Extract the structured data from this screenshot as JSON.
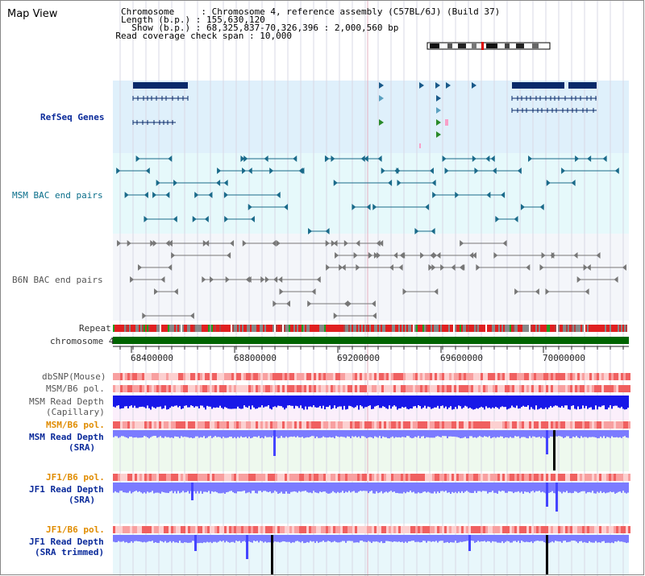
{
  "view": {
    "title": "Map View"
  },
  "header": {
    "lines": [
      "Chromosome     : Chromosome 4, reference assembly (C57BL/6J) (Build 37)",
      "Length (b.p.) : 155,630,120",
      "  Show (b.p.) : 68,325,837-70,326,396 : 2,000,560 bp",
      "Read coverage check span : 10,000"
    ]
  },
  "tracks": {
    "refseq": "RefSeq Genes",
    "msm_bac": "MSM BAC end pairs",
    "b6n_bac": "B6N BAC end pairs",
    "repeat": "Repeat",
    "chromosome": "chromosome 4",
    "dbsnp": "dbSNP(Mouse)",
    "msm_b6_pol_1": "MSM/B6 pol.",
    "msm_depth_cap_1": "MSM Read Depth",
    "msm_depth_cap_2": "(Capillary)",
    "msm_b6_pol_2": "MSM/B6 pol.",
    "msm_depth_sra_1": "MSM Read Depth",
    "msm_depth_sra_2": "(SRA)",
    "jf1_b6_pol_1": "JF1/B6 pol.",
    "jf1_depth_sra_1": "JF1 Read Depth",
    "jf1_depth_sra_2": "(SRA)",
    "jf1_b6_pol_2": "JF1/B6 pol.",
    "jf1_depth_trim_1": "JF1 Read Depth",
    "jf1_depth_trim_2": "(SRA trimmed)"
  },
  "axis": {
    "ticks": [
      "68400000",
      "68800000",
      "69200000",
      "69600000",
      "70000000"
    ]
  },
  "colors": {
    "refseq_bg": "#dff0fb",
    "msm_bg": "#e6f9fb",
    "b6n_bg": "#f4f6fa",
    "chrom_green": "#006400",
    "depth_blue": "#0000ee",
    "depth_light": "#7b7bff",
    "gene_navy": "#0a2a6a"
  }
}
